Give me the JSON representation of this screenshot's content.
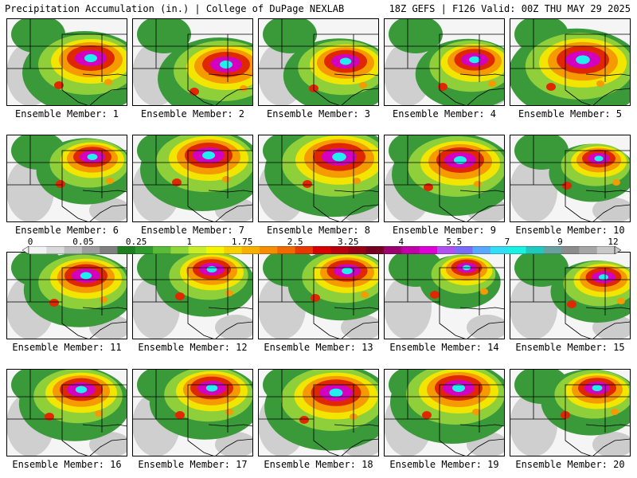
{
  "header": {
    "left": "Precipitation Accumulation (in.) | College of DuPage NEXLAB",
    "right": "18Z GEFS | F126 Valid: 00Z THU MAY 29 2025"
  },
  "colorbar": {
    "ticks": [
      "0",
      "0.05",
      "0.25",
      "1",
      "1.75",
      "2.5",
      "3.25",
      "4",
      "5.5",
      "7",
      "9",
      "12"
    ],
    "colors": [
      "#f2f2f2",
      "#d9d9d9",
      "#bdbdbd",
      "#9e9e9e",
      "#7f7f7f",
      "#1e7d1e",
      "#2f9b2f",
      "#58bb3a",
      "#8ed63a",
      "#c8ee2a",
      "#f4f400",
      "#f6d000",
      "#f7b000",
      "#f58e00",
      "#f06a00",
      "#e83800",
      "#d80000",
      "#b80010",
      "#960015",
      "#760020",
      "#9a0070",
      "#c300a8",
      "#e000d8",
      "#b050f0",
      "#7a6cf8",
      "#58a8ff",
      "#33ddf5",
      "#17f2e2",
      "#20c8c0",
      "#6aa0a0",
      "#8c8c8c",
      "#a6a6a6",
      "#c8c8c8"
    ]
  },
  "palette": {
    "background": "#f5f5f5",
    "light": "#c8c8c8",
    "green": "#3a9a3a",
    "lightgreen": "#8fd03a",
    "yellow": "#f2e600",
    "orange": "#f59a00",
    "red": "#e02800",
    "magenta": "#d400c0",
    "cyan": "#22eef0"
  },
  "members": [
    {
      "label": "Ensemble Member: 1"
    },
    {
      "label": "Ensemble Member: 2"
    },
    {
      "label": "Ensemble Member: 3"
    },
    {
      "label": "Ensemble Member: 4"
    },
    {
      "label": "Ensemble Member: 5"
    },
    {
      "label": "Ensemble Member: 6"
    },
    {
      "label": "Ensemble Member: 7"
    },
    {
      "label": "Ensemble Member: 8"
    },
    {
      "label": "Ensemble Member: 9"
    },
    {
      "label": "Ensemble Member: 10"
    },
    {
      "label": "Ensemble Member: 11"
    },
    {
      "label": "Ensemble Member: 12"
    },
    {
      "label": "Ensemble Member: 13"
    },
    {
      "label": "Ensemble Member: 14"
    },
    {
      "label": "Ensemble Member: 15"
    },
    {
      "label": "Ensemble Member: 16"
    },
    {
      "label": "Ensemble Member: 17"
    },
    {
      "label": "Ensemble Member: 18"
    },
    {
      "label": "Ensemble Member: 19"
    },
    {
      "label": "Ensemble Member: 20"
    }
  ]
}
